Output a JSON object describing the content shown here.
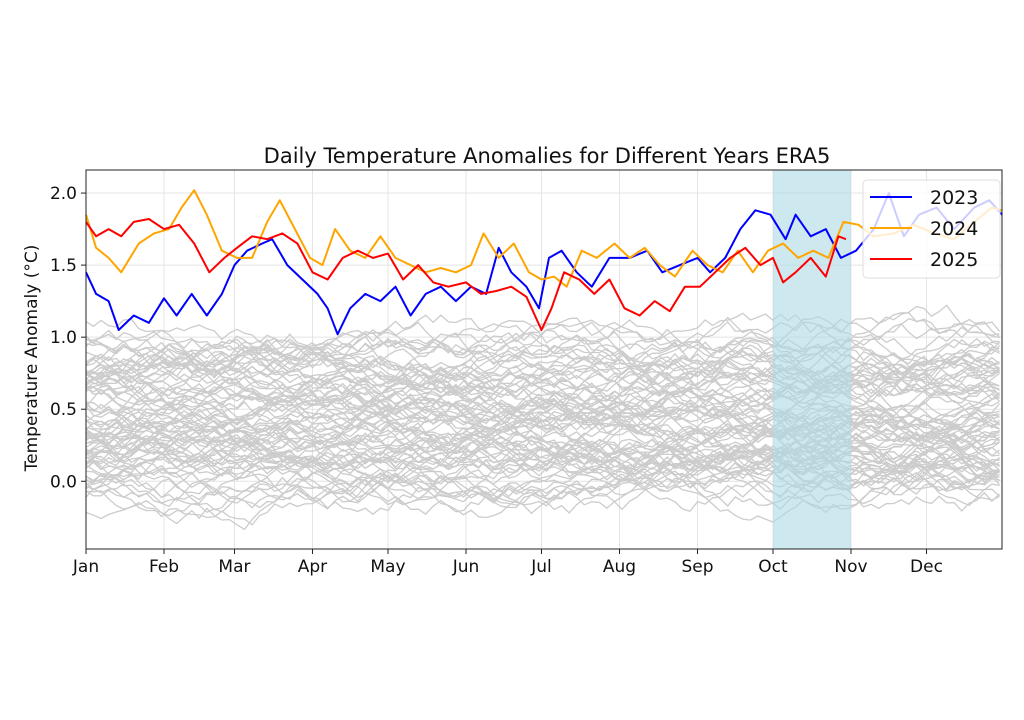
{
  "chart_data": {
    "type": "line",
    "title": "Daily Temperature Anomalies for Different Years ERA5",
    "xlabel": "",
    "ylabel": "Temperature Anomaly (°C)",
    "xlim": [
      "01-01",
      "12-31"
    ],
    "ylim": [
      -0.47,
      2.16
    ],
    "x_ticks": [
      "Jan",
      "Feb",
      "Mar",
      "Apr",
      "May",
      "Jun",
      "Jul",
      "Aug",
      "Sep",
      "Oct",
      "Nov",
      "Dec"
    ],
    "y_ticks": [
      "0.0",
      "0.5",
      "1.0",
      "1.5",
      "2.0"
    ],
    "y_tick_values": [
      0,
      0.5,
      1.0,
      1.5,
      2.0
    ],
    "grid": true,
    "legend": "top-right",
    "highlight_span": {
      "start": "10-01",
      "end": "11-01",
      "color": "#add8e6"
    },
    "background_series": {
      "color": "#cccccc",
      "description": "earlier years, unlabeled"
    },
    "series": [
      {
        "name": "2023",
        "color": "#0000ff",
        "points": [
          [
            "01-01",
            1.45
          ],
          [
            "01-05",
            1.3
          ],
          [
            "01-10",
            1.25
          ],
          [
            "01-14",
            1.05
          ],
          [
            "01-20",
            1.15
          ],
          [
            "01-26",
            1.1
          ],
          [
            "02-01",
            1.27
          ],
          [
            "02-06",
            1.15
          ],
          [
            "02-12",
            1.3
          ],
          [
            "02-18",
            1.15
          ],
          [
            "02-24",
            1.3
          ],
          [
            "03-01",
            1.5
          ],
          [
            "03-06",
            1.6
          ],
          [
            "03-12",
            1.65
          ],
          [
            "03-16",
            1.68
          ],
          [
            "03-22",
            1.5
          ],
          [
            "03-28",
            1.4
          ],
          [
            "04-03",
            1.3
          ],
          [
            "04-07",
            1.2
          ],
          [
            "04-11",
            1.02
          ],
          [
            "04-16",
            1.2
          ],
          [
            "04-22",
            1.3
          ],
          [
            "04-28",
            1.25
          ],
          [
            "05-04",
            1.35
          ],
          [
            "05-10",
            1.15
          ],
          [
            "05-16",
            1.3
          ],
          [
            "05-22",
            1.35
          ],
          [
            "05-28",
            1.25
          ],
          [
            "06-03",
            1.35
          ],
          [
            "06-09",
            1.3
          ],
          [
            "06-14",
            1.62
          ],
          [
            "06-19",
            1.45
          ],
          [
            "06-25",
            1.35
          ],
          [
            "06-30",
            1.2
          ],
          [
            "07-04",
            1.55
          ],
          [
            "07-09",
            1.6
          ],
          [
            "07-15",
            1.45
          ],
          [
            "07-21",
            1.35
          ],
          [
            "07-28",
            1.55
          ],
          [
            "08-05",
            1.55
          ],
          [
            "08-12",
            1.6
          ],
          [
            "08-18",
            1.45
          ],
          [
            "08-25",
            1.5
          ],
          [
            "09-01",
            1.55
          ],
          [
            "09-06",
            1.45
          ],
          [
            "09-12",
            1.55
          ],
          [
            "09-18",
            1.75
          ],
          [
            "09-24",
            1.88
          ],
          [
            "09-30",
            1.85
          ],
          [
            "10-06",
            1.68
          ],
          [
            "10-10",
            1.85
          ],
          [
            "10-16",
            1.7
          ],
          [
            "10-22",
            1.75
          ],
          [
            "10-28",
            1.55
          ],
          [
            "11-03",
            1.6
          ],
          [
            "11-10",
            1.75
          ],
          [
            "11-16",
            2.0
          ],
          [
            "11-22",
            1.7
          ],
          [
            "11-28",
            1.85
          ],
          [
            "12-05",
            1.9
          ],
          [
            "12-12",
            1.75
          ],
          [
            "12-20",
            1.9
          ],
          [
            "12-26",
            1.95
          ],
          [
            "12-31",
            1.85
          ]
        ]
      },
      {
        "name": "2024",
        "color": "#ffa500",
        "points": [
          [
            "01-01",
            1.85
          ],
          [
            "01-05",
            1.62
          ],
          [
            "01-10",
            1.55
          ],
          [
            "01-15",
            1.45
          ],
          [
            "01-22",
            1.65
          ],
          [
            "01-28",
            1.72
          ],
          [
            "02-03",
            1.75
          ],
          [
            "02-08",
            1.9
          ],
          [
            "02-13",
            2.02
          ],
          [
            "02-18",
            1.85
          ],
          [
            "02-24",
            1.6
          ],
          [
            "03-02",
            1.55
          ],
          [
            "03-08",
            1.55
          ],
          [
            "03-14",
            1.8
          ],
          [
            "03-19",
            1.95
          ],
          [
            "03-25",
            1.75
          ],
          [
            "03-31",
            1.55
          ],
          [
            "04-05",
            1.5
          ],
          [
            "04-10",
            1.75
          ],
          [
            "04-16",
            1.6
          ],
          [
            "04-22",
            1.55
          ],
          [
            "04-28",
            1.7
          ],
          [
            "05-04",
            1.55
          ],
          [
            "05-10",
            1.5
          ],
          [
            "05-16",
            1.45
          ],
          [
            "05-22",
            1.48
          ],
          [
            "05-28",
            1.45
          ],
          [
            "06-03",
            1.5
          ],
          [
            "06-08",
            1.72
          ],
          [
            "06-14",
            1.55
          ],
          [
            "06-20",
            1.65
          ],
          [
            "06-26",
            1.45
          ],
          [
            "07-01",
            1.4
          ],
          [
            "07-06",
            1.42
          ],
          [
            "07-11",
            1.35
          ],
          [
            "07-17",
            1.6
          ],
          [
            "07-23",
            1.55
          ],
          [
            "07-30",
            1.65
          ],
          [
            "08-05",
            1.55
          ],
          [
            "08-11",
            1.62
          ],
          [
            "08-17",
            1.5
          ],
          [
            "08-23",
            1.42
          ],
          [
            "08-30",
            1.6
          ],
          [
            "09-05",
            1.5
          ],
          [
            "09-11",
            1.45
          ],
          [
            "09-17",
            1.6
          ],
          [
            "09-23",
            1.45
          ],
          [
            "09-29",
            1.6
          ],
          [
            "10-05",
            1.65
          ],
          [
            "10-11",
            1.55
          ],
          [
            "10-17",
            1.6
          ],
          [
            "10-23",
            1.55
          ],
          [
            "10-29",
            1.8
          ],
          [
            "11-04",
            1.78
          ],
          [
            "11-10",
            1.7
          ],
          [
            "11-18",
            1.72
          ],
          [
            "11-26",
            1.78
          ],
          [
            "12-04",
            1.72
          ],
          [
            "12-12",
            1.68
          ],
          [
            "12-20",
            1.8
          ],
          [
            "12-27",
            1.9
          ],
          [
            "12-31",
            1.88
          ]
        ]
      },
      {
        "name": "2025",
        "color": "#ff0000",
        "points": [
          [
            "01-01",
            1.8
          ],
          [
            "01-05",
            1.7
          ],
          [
            "01-10",
            1.75
          ],
          [
            "01-15",
            1.7
          ],
          [
            "01-20",
            1.8
          ],
          [
            "01-26",
            1.82
          ],
          [
            "02-01",
            1.75
          ],
          [
            "02-07",
            1.78
          ],
          [
            "02-13",
            1.65
          ],
          [
            "02-19",
            1.45
          ],
          [
            "02-25",
            1.55
          ],
          [
            "03-02",
            1.62
          ],
          [
            "03-08",
            1.7
          ],
          [
            "03-14",
            1.68
          ],
          [
            "03-20",
            1.72
          ],
          [
            "03-26",
            1.65
          ],
          [
            "04-01",
            1.45
          ],
          [
            "04-07",
            1.4
          ],
          [
            "04-13",
            1.55
          ],
          [
            "04-19",
            1.6
          ],
          [
            "04-25",
            1.55
          ],
          [
            "05-01",
            1.58
          ],
          [
            "05-07",
            1.4
          ],
          [
            "05-13",
            1.5
          ],
          [
            "05-19",
            1.38
          ],
          [
            "05-25",
            1.35
          ],
          [
            "06-01",
            1.38
          ],
          [
            "06-07",
            1.3
          ],
          [
            "06-13",
            1.32
          ],
          [
            "06-19",
            1.35
          ],
          [
            "06-25",
            1.28
          ],
          [
            "07-01",
            1.05
          ],
          [
            "07-05",
            1.2
          ],
          [
            "07-10",
            1.45
          ],
          [
            "07-16",
            1.4
          ],
          [
            "07-22",
            1.3
          ],
          [
            "07-28",
            1.4
          ],
          [
            "08-03",
            1.2
          ],
          [
            "08-09",
            1.15
          ],
          [
            "08-15",
            1.25
          ],
          [
            "08-21",
            1.18
          ],
          [
            "08-27",
            1.35
          ],
          [
            "09-02",
            1.35
          ],
          [
            "09-08",
            1.45
          ],
          [
            "09-14",
            1.55
          ],
          [
            "09-20",
            1.62
          ],
          [
            "09-26",
            1.5
          ],
          [
            "10-01",
            1.55
          ],
          [
            "10-05",
            1.38
          ],
          [
            "10-10",
            1.45
          ],
          [
            "10-16",
            1.55
          ],
          [
            "10-22",
            1.42
          ],
          [
            "10-27",
            1.7
          ],
          [
            "10-30",
            1.68
          ]
        ]
      }
    ]
  }
}
